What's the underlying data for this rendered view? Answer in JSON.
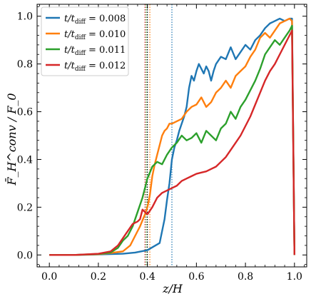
{
  "chart_data": {
    "type": "line",
    "xlabel": "z/H",
    "ylabel": "F̄_H^conv / F_0",
    "xlim": [
      -0.05,
      1.05
    ],
    "ylim": [
      -0.05,
      1.05
    ],
    "xticks": [
      0.0,
      0.2,
      0.4,
      0.6,
      0.8,
      1.0
    ],
    "yticks": [
      0.0,
      0.2,
      0.4,
      0.6,
      0.8,
      1.0
    ],
    "xtick_labels": [
      "0.0",
      "0.2",
      "0.4",
      "0.6",
      "0.8",
      "1.0"
    ],
    "ytick_labels": [
      "0.0",
      "0.2",
      "0.4",
      "0.6",
      "0.8",
      "1.0"
    ],
    "grid": false,
    "legend": "top-left",
    "series": [
      {
        "name": "t/t_diff = 0.008",
        "label_main": "t/t",
        "label_sub": "diff",
        "label_value": "= 0.008",
        "color": "#1f77b4",
        "vline": 0.5,
        "points": [
          [
            0,
            0
          ],
          [
            0.1,
            0
          ],
          [
            0.2,
            0.002
          ],
          [
            0.3,
            0.005
          ],
          [
            0.35,
            0.01
          ],
          [
            0.4,
            0.02
          ],
          [
            0.45,
            0.05
          ],
          [
            0.46,
            0.1
          ],
          [
            0.47,
            0.15
          ],
          [
            0.48,
            0.23
          ],
          [
            0.49,
            0.3
          ],
          [
            0.5,
            0.4
          ],
          [
            0.51,
            0.45
          ],
          [
            0.52,
            0.48
          ],
          [
            0.53,
            0.52
          ],
          [
            0.54,
            0.55
          ],
          [
            0.55,
            0.58
          ],
          [
            0.56,
            0.62
          ],
          [
            0.57,
            0.7
          ],
          [
            0.58,
            0.75
          ],
          [
            0.59,
            0.73
          ],
          [
            0.6,
            0.77
          ],
          [
            0.61,
            0.8
          ],
          [
            0.62,
            0.78
          ],
          [
            0.63,
            0.76
          ],
          [
            0.64,
            0.79
          ],
          [
            0.65,
            0.77
          ],
          [
            0.66,
            0.73
          ],
          [
            0.67,
            0.77
          ],
          [
            0.68,
            0.8
          ],
          [
            0.7,
            0.83
          ],
          [
            0.72,
            0.82
          ],
          [
            0.74,
            0.87
          ],
          [
            0.76,
            0.82
          ],
          [
            0.78,
            0.85
          ],
          [
            0.8,
            0.88
          ],
          [
            0.82,
            0.86
          ],
          [
            0.84,
            0.9
          ],
          [
            0.86,
            0.92
          ],
          [
            0.88,
            0.95
          ],
          [
            0.9,
            0.97
          ],
          [
            0.92,
            0.98
          ],
          [
            0.94,
            0.99
          ],
          [
            0.96,
            0.98
          ],
          [
            0.98,
            0.99
          ],
          [
            0.99,
            0.99
          ],
          [
            1.0,
            0.0
          ]
        ]
      },
      {
        "name": "t/t_diff = 0.010",
        "label_main": "t/t",
        "label_sub": "diff",
        "label_value": "= 0.010",
        "color": "#ff7f0e",
        "vline": 0.41,
        "points": [
          [
            0,
            0
          ],
          [
            0.1,
            0
          ],
          [
            0.2,
            0.003
          ],
          [
            0.25,
            0.008
          ],
          [
            0.3,
            0.015
          ],
          [
            0.33,
            0.04
          ],
          [
            0.35,
            0.08
          ],
          [
            0.37,
            0.12
          ],
          [
            0.39,
            0.17
          ],
          [
            0.4,
            0.2
          ],
          [
            0.41,
            0.25
          ],
          [
            0.42,
            0.33
          ],
          [
            0.43,
            0.38
          ],
          [
            0.44,
            0.42
          ],
          [
            0.45,
            0.46
          ],
          [
            0.46,
            0.5
          ],
          [
            0.47,
            0.52
          ],
          [
            0.48,
            0.53
          ],
          [
            0.49,
            0.55
          ],
          [
            0.5,
            0.55
          ],
          [
            0.52,
            0.56
          ],
          [
            0.54,
            0.57
          ],
          [
            0.56,
            0.6
          ],
          [
            0.58,
            0.62
          ],
          [
            0.6,
            0.63
          ],
          [
            0.62,
            0.66
          ],
          [
            0.64,
            0.62
          ],
          [
            0.66,
            0.64
          ],
          [
            0.68,
            0.68
          ],
          [
            0.7,
            0.7
          ],
          [
            0.72,
            0.73
          ],
          [
            0.74,
            0.7
          ],
          [
            0.76,
            0.75
          ],
          [
            0.78,
            0.77
          ],
          [
            0.8,
            0.79
          ],
          [
            0.82,
            0.83
          ],
          [
            0.84,
            0.86
          ],
          [
            0.86,
            0.91
          ],
          [
            0.88,
            0.93
          ],
          [
            0.9,
            0.91
          ],
          [
            0.92,
            0.94
          ],
          [
            0.94,
            0.97
          ],
          [
            0.96,
            0.98
          ],
          [
            0.98,
            0.99
          ],
          [
            0.99,
            0.98
          ],
          [
            1.0,
            0.0
          ]
        ]
      },
      {
        "name": "t/t_diff = 0.011",
        "label_main": "t/t",
        "label_sub": "diff",
        "label_value": "= 0.011",
        "color": "#2ca02c",
        "vline": 0.395,
        "points": [
          [
            0,
            0
          ],
          [
            0.1,
            0
          ],
          [
            0.2,
            0.004
          ],
          [
            0.25,
            0.01
          ],
          [
            0.28,
            0.03
          ],
          [
            0.3,
            0.06
          ],
          [
            0.32,
            0.08
          ],
          [
            0.34,
            0.12
          ],
          [
            0.36,
            0.18
          ],
          [
            0.38,
            0.24
          ],
          [
            0.4,
            0.32
          ],
          [
            0.42,
            0.37
          ],
          [
            0.44,
            0.39
          ],
          [
            0.46,
            0.38
          ],
          [
            0.48,
            0.42
          ],
          [
            0.5,
            0.45
          ],
          [
            0.52,
            0.47
          ],
          [
            0.54,
            0.5
          ],
          [
            0.56,
            0.48
          ],
          [
            0.58,
            0.49
          ],
          [
            0.6,
            0.51
          ],
          [
            0.62,
            0.47
          ],
          [
            0.64,
            0.52
          ],
          [
            0.66,
            0.5
          ],
          [
            0.68,
            0.48
          ],
          [
            0.7,
            0.53
          ],
          [
            0.72,
            0.55
          ],
          [
            0.74,
            0.6
          ],
          [
            0.76,
            0.57
          ],
          [
            0.78,
            0.62
          ],
          [
            0.8,
            0.65
          ],
          [
            0.82,
            0.69
          ],
          [
            0.84,
            0.73
          ],
          [
            0.86,
            0.78
          ],
          [
            0.88,
            0.84
          ],
          [
            0.9,
            0.87
          ],
          [
            0.92,
            0.9
          ],
          [
            0.94,
            0.88
          ],
          [
            0.96,
            0.91
          ],
          [
            0.98,
            0.94
          ],
          [
            0.99,
            0.96
          ],
          [
            1.0,
            0.0
          ]
        ]
      },
      {
        "name": "t/t_diff = 0.012",
        "label_main": "t/t",
        "label_sub": "diff",
        "label_value": "= 0.012",
        "color": "#d62728",
        "vline": 0.39,
        "points": [
          [
            0,
            0
          ],
          [
            0.1,
            0
          ],
          [
            0.2,
            0.005
          ],
          [
            0.25,
            0.015
          ],
          [
            0.28,
            0.04
          ],
          [
            0.3,
            0.07
          ],
          [
            0.32,
            0.1
          ],
          [
            0.34,
            0.13
          ],
          [
            0.36,
            0.14
          ],
          [
            0.37,
            0.15
          ],
          [
            0.38,
            0.19
          ],
          [
            0.4,
            0.17
          ],
          [
            0.42,
            0.2
          ],
          [
            0.44,
            0.24
          ],
          [
            0.46,
            0.26
          ],
          [
            0.48,
            0.27
          ],
          [
            0.5,
            0.28
          ],
          [
            0.52,
            0.29
          ],
          [
            0.54,
            0.31
          ],
          [
            0.56,
            0.32
          ],
          [
            0.58,
            0.33
          ],
          [
            0.6,
            0.34
          ],
          [
            0.62,
            0.345
          ],
          [
            0.64,
            0.35
          ],
          [
            0.66,
            0.36
          ],
          [
            0.68,
            0.37
          ],
          [
            0.7,
            0.39
          ],
          [
            0.72,
            0.41
          ],
          [
            0.74,
            0.44
          ],
          [
            0.76,
            0.47
          ],
          [
            0.78,
            0.5
          ],
          [
            0.8,
            0.54
          ],
          [
            0.82,
            0.58
          ],
          [
            0.84,
            0.63
          ],
          [
            0.86,
            0.68
          ],
          [
            0.88,
            0.73
          ],
          [
            0.9,
            0.77
          ],
          [
            0.92,
            0.8
          ],
          [
            0.94,
            0.84
          ],
          [
            0.96,
            0.88
          ],
          [
            0.98,
            0.92
          ],
          [
            0.99,
            0.94
          ],
          [
            1.0,
            0.0
          ]
        ]
      }
    ],
    "vline_black": 0.4
  }
}
